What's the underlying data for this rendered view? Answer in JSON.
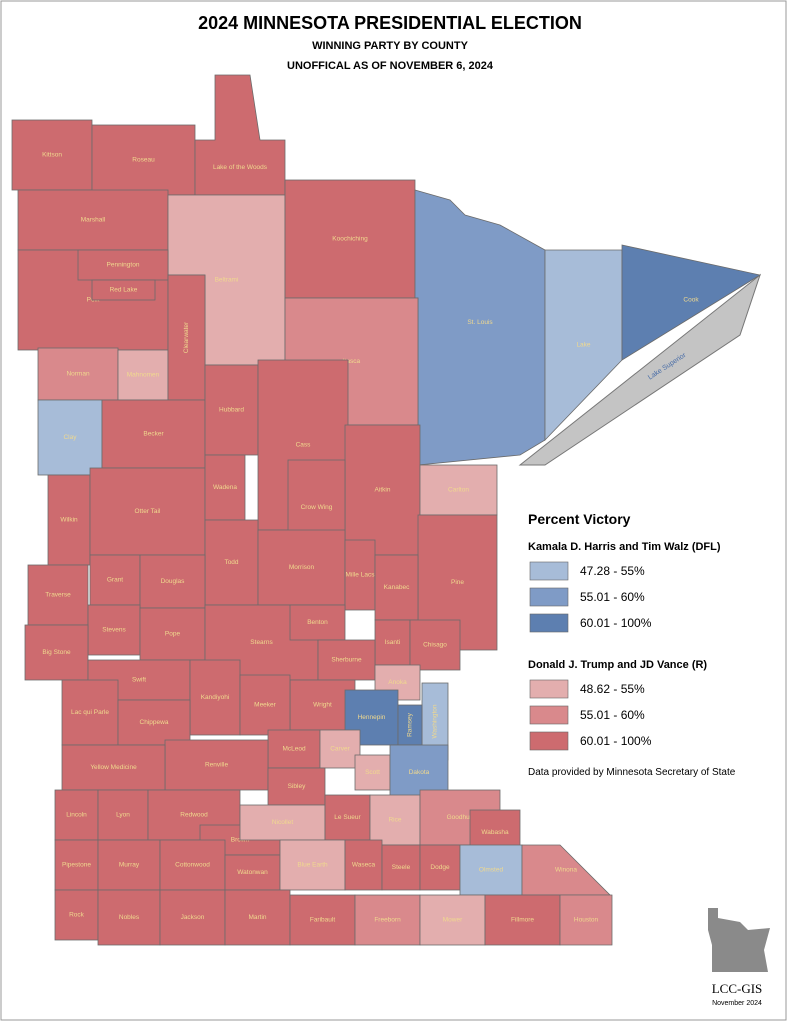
{
  "header": {
    "title": "2024 MINNESOTA PRESIDENTIAL ELECTION",
    "subtitle": "WINNING PARTY BY COUNTY",
    "note": "UNOFFICAL AS OF NOVEMBER 6, 2024"
  },
  "lake_superior": "Lake Superior",
  "counties": [
    {
      "name": "Kittson",
      "color": "#cd6b6f"
    },
    {
      "name": "Roseau",
      "color": "#cd6b6f"
    },
    {
      "name": "Lake of the Woods",
      "color": "#cd6b6f"
    },
    {
      "name": "Marshall",
      "color": "#cd6b6f"
    },
    {
      "name": "Beltrami",
      "color": "#e3aeae"
    },
    {
      "name": "Koochiching",
      "color": "#cd6b6f"
    },
    {
      "name": "St. Louis",
      "color": "#7f9bc6"
    },
    {
      "name": "Lake",
      "color": "#a7bcd8"
    },
    {
      "name": "Cook",
      "color": "#5d7fb0"
    },
    {
      "name": "Polk",
      "color": "#cd6b6f"
    },
    {
      "name": "Pennington",
      "color": "#cd6b6f"
    },
    {
      "name": "Red Lake",
      "color": "#cd6b6f"
    },
    {
      "name": "Norman",
      "color": "#d9898c"
    },
    {
      "name": "Mahnomen",
      "color": "#e3aeae"
    },
    {
      "name": "Clearwater",
      "color": "#cd6b6f"
    },
    {
      "name": "Itasca",
      "color": "#d9898c"
    },
    {
      "name": "Clay",
      "color": "#a7bcd8"
    },
    {
      "name": "Becker",
      "color": "#cd6b6f"
    },
    {
      "name": "Hubbard",
      "color": "#cd6b6f"
    },
    {
      "name": "Cass",
      "color": "#cd6b6f"
    },
    {
      "name": "Aitkin",
      "color": "#cd6b6f"
    },
    {
      "name": "Carlton",
      "color": "#e3aeae"
    },
    {
      "name": "Wilkin",
      "color": "#cd6b6f"
    },
    {
      "name": "Otter Tail",
      "color": "#cd6b6f"
    },
    {
      "name": "Wadena",
      "color": "#cd6b6f"
    },
    {
      "name": "Crow Wing",
      "color": "#cd6b6f"
    },
    {
      "name": "Pine",
      "color": "#cd6b6f"
    },
    {
      "name": "Todd",
      "color": "#cd6b6f"
    },
    {
      "name": "Morrison",
      "color": "#cd6b6f"
    },
    {
      "name": "Mille Lacs",
      "color": "#cd6b6f"
    },
    {
      "name": "Kanabec",
      "color": "#cd6b6f"
    },
    {
      "name": "Grant",
      "color": "#cd6b6f"
    },
    {
      "name": "Douglas",
      "color": "#cd6b6f"
    },
    {
      "name": "Traverse",
      "color": "#cd6b6f"
    },
    {
      "name": "Stevens",
      "color": "#cd6b6f"
    },
    {
      "name": "Pope",
      "color": "#cd6b6f"
    },
    {
      "name": "Stearns",
      "color": "#cd6b6f"
    },
    {
      "name": "Benton",
      "color": "#cd6b6f"
    },
    {
      "name": "Isanti",
      "color": "#cd6b6f"
    },
    {
      "name": "Chisago",
      "color": "#cd6b6f"
    },
    {
      "name": "Big Stone",
      "color": "#cd6b6f"
    },
    {
      "name": "Sherburne",
      "color": "#cd6b6f"
    },
    {
      "name": "Anoka",
      "color": "#e3aeae"
    },
    {
      "name": "Swift",
      "color": "#cd6b6f"
    },
    {
      "name": "Kandiyohi",
      "color": "#cd6b6f"
    },
    {
      "name": "Wright",
      "color": "#cd6b6f"
    },
    {
      "name": "Washington",
      "color": "#a7bcd8"
    },
    {
      "name": "Hennepin",
      "color": "#5d7fb0"
    },
    {
      "name": "Ramsey",
      "color": "#5d7fb0"
    },
    {
      "name": "Lac qui Parle",
      "color": "#cd6b6f"
    },
    {
      "name": "Chippewa",
      "color": "#cd6b6f"
    },
    {
      "name": "Meeker",
      "color": "#cd6b6f"
    },
    {
      "name": "McLeod",
      "color": "#cd6b6f"
    },
    {
      "name": "Carver",
      "color": "#e3aeae"
    },
    {
      "name": "Scott",
      "color": "#e3aeae"
    },
    {
      "name": "Dakota",
      "color": "#7f9bc6"
    },
    {
      "name": "Renville",
      "color": "#cd6b6f"
    },
    {
      "name": "Yellow Medicine",
      "color": "#cd6b6f"
    },
    {
      "name": "Sibley",
      "color": "#cd6b6f"
    },
    {
      "name": "Lincoln",
      "color": "#cd6b6f"
    },
    {
      "name": "Lyon",
      "color": "#cd6b6f"
    },
    {
      "name": "Redwood",
      "color": "#cd6b6f"
    },
    {
      "name": "Brown",
      "color": "#cd6b6f"
    },
    {
      "name": "Nicollet",
      "color": "#e3aeae"
    },
    {
      "name": "Le Sueur",
      "color": "#cd6b6f"
    },
    {
      "name": "Rice",
      "color": "#e3aeae"
    },
    {
      "name": "Goodhue",
      "color": "#d9898c"
    },
    {
      "name": "Wabasha",
      "color": "#cd6b6f"
    },
    {
      "name": "Pipestone",
      "color": "#cd6b6f"
    },
    {
      "name": "Murray",
      "color": "#cd6b6f"
    },
    {
      "name": "Cottonwood",
      "color": "#cd6b6f"
    },
    {
      "name": "Watonwan",
      "color": "#cd6b6f"
    },
    {
      "name": "Blue Earth",
      "color": "#e3aeae"
    },
    {
      "name": "Waseca",
      "color": "#cd6b6f"
    },
    {
      "name": "Steele",
      "color": "#cd6b6f"
    },
    {
      "name": "Dodge",
      "color": "#cd6b6f"
    },
    {
      "name": "Olmsted",
      "color": "#a7bcd8"
    },
    {
      "name": "Winona",
      "color": "#d9898c"
    },
    {
      "name": "Rock",
      "color": "#cd6b6f"
    },
    {
      "name": "Nobles",
      "color": "#cd6b6f"
    },
    {
      "name": "Jackson",
      "color": "#cd6b6f"
    },
    {
      "name": "Martin",
      "color": "#cd6b6f"
    },
    {
      "name": "Faribault",
      "color": "#cd6b6f"
    },
    {
      "name": "Freeborn",
      "color": "#d9898c"
    },
    {
      "name": "Mower",
      "color": "#e3aeae"
    },
    {
      "name": "Fillmore",
      "color": "#cd6b6f"
    },
    {
      "name": "Houston",
      "color": "#d9898c"
    }
  ],
  "legend": {
    "title": "Percent Victory",
    "groups": [
      {
        "title": "Kamala D. Harris and Tim Walz (DFL)",
        "items": [
          {
            "label": "47.28 - 55%",
            "color": "#a7bcd8"
          },
          {
            "label": "55.01 - 60%",
            "color": "#7f9bc6"
          },
          {
            "label": "60.01 - 100%",
            "color": "#5d7fb0"
          }
        ]
      },
      {
        "title": "Donald J. Trump and JD Vance (R)",
        "items": [
          {
            "label": "48.62 - 55%",
            "color": "#e3aeae"
          },
          {
            "label": "55.01 - 60%",
            "color": "#d9898c"
          },
          {
            "label": "60.01 - 100%",
            "color": "#cd6b6f"
          }
        ]
      }
    ]
  },
  "source": "Data provided by Minnesota Secretary of State",
  "logo": {
    "name": "LCC-GIS",
    "date": "November 2024"
  }
}
